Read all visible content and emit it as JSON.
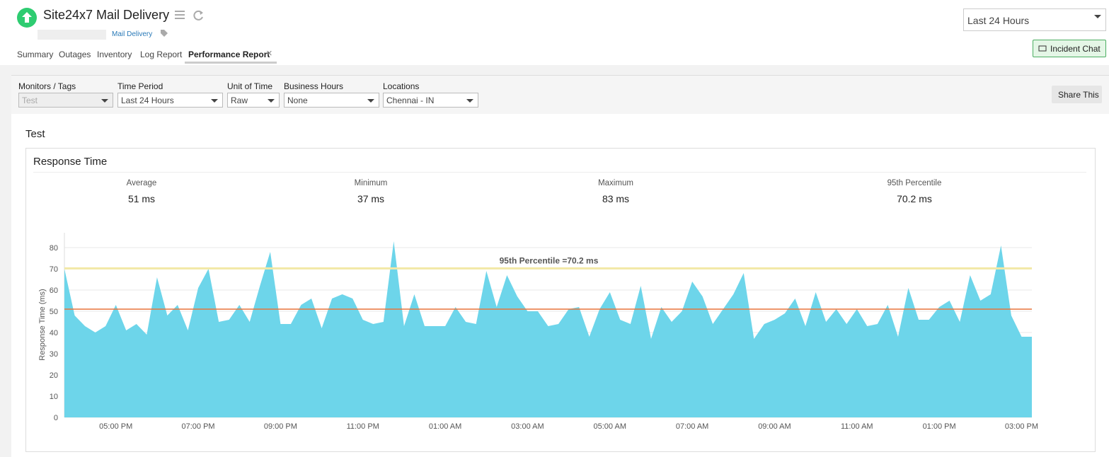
{
  "header": {
    "title": "Site24x7 Mail Delivery",
    "group": "Mail Delivery",
    "tabs": [
      "Summary",
      "Outages",
      "Inventory",
      "Log Report",
      "Performance Report"
    ],
    "period": "Last 24 Hours",
    "incident_chat": "Incident Chat"
  },
  "filters": {
    "fields": [
      {
        "label": "Monitors / Tags",
        "value": "Test"
      },
      {
        "label": "Time Period",
        "value": "Last 24 Hours"
      },
      {
        "label": "Unit of Time",
        "value": "Raw"
      },
      {
        "label": "Business Hours",
        "value": "None"
      },
      {
        "label": "Locations",
        "value": "Chennai - IN"
      }
    ],
    "share": "Share This"
  },
  "section_title": "Test",
  "card": {
    "title": "Response Time",
    "stats": [
      {
        "label": "Average",
        "value": "51 ms"
      },
      {
        "label": "Minimum",
        "value": "37 ms"
      },
      {
        "label": "Maximum",
        "value": "83 ms"
      },
      {
        "label": "95th Percentile",
        "value": "70.2 ms"
      }
    ]
  },
  "chart_data": {
    "type": "area",
    "y_label": "Response Time (ms)",
    "color": "#6dd5ea",
    "grid": true,
    "categories": [
      null,
      null,
      null,
      null,
      null,
      "05:00 PM",
      null,
      null,
      null,
      null,
      null,
      null,
      null,
      "07:00 PM",
      null,
      null,
      null,
      null,
      null,
      null,
      null,
      "09:00 PM",
      null,
      null,
      null,
      null,
      null,
      null,
      null,
      "11:00 PM",
      null,
      null,
      null,
      null,
      null,
      null,
      null,
      "01:00 AM",
      null,
      null,
      null,
      null,
      null,
      null,
      null,
      "03:00 AM",
      null,
      null,
      null,
      null,
      null,
      null,
      null,
      "05:00 AM",
      null,
      null,
      null,
      null,
      null,
      null,
      null,
      "07:00 AM",
      null,
      null,
      null,
      null,
      null,
      null,
      null,
      "09:00 AM",
      null,
      null,
      null,
      null,
      null,
      null,
      null,
      "11:00 AM",
      null,
      null,
      null,
      null,
      null,
      null,
      null,
      "01:00 PM",
      null,
      null,
      null,
      null,
      null,
      null,
      null,
      "03:00 PM",
      null
    ],
    "values": [
      70,
      48,
      43,
      40,
      43,
      53,
      41,
      44,
      39,
      66,
      48,
      53,
      41,
      61,
      70,
      45,
      46,
      53,
      45,
      62,
      78,
      44,
      44,
      53,
      56,
      42,
      56,
      58,
      56,
      46,
      44,
      45,
      83,
      43,
      58,
      43,
      43,
      43,
      52,
      45,
      44,
      69,
      52,
      67,
      57,
      50,
      50,
      43,
      44,
      51,
      52,
      38,
      51,
      59,
      46,
      44,
      62,
      37,
      52,
      45,
      50,
      64,
      57,
      44,
      51,
      58,
      68,
      37,
      44,
      46,
      49,
      56,
      43,
      59,
      45,
      51,
      44,
      51,
      43,
      44,
      53,
      38,
      61,
      46,
      46,
      52,
      55,
      45,
      67,
      55,
      58,
      81,
      48,
      38,
      38
    ],
    "ylim": [
      0,
      87
    ],
    "yticks": [
      0,
      10,
      20,
      30,
      40,
      50,
      60,
      70,
      80
    ],
    "reference_lines": [
      {
        "value": 70.2,
        "color": "#f2e8a6",
        "annotation": "95th Percentile =70.2 ms"
      },
      {
        "value": 51,
        "color": "#e8743b"
      }
    ]
  }
}
